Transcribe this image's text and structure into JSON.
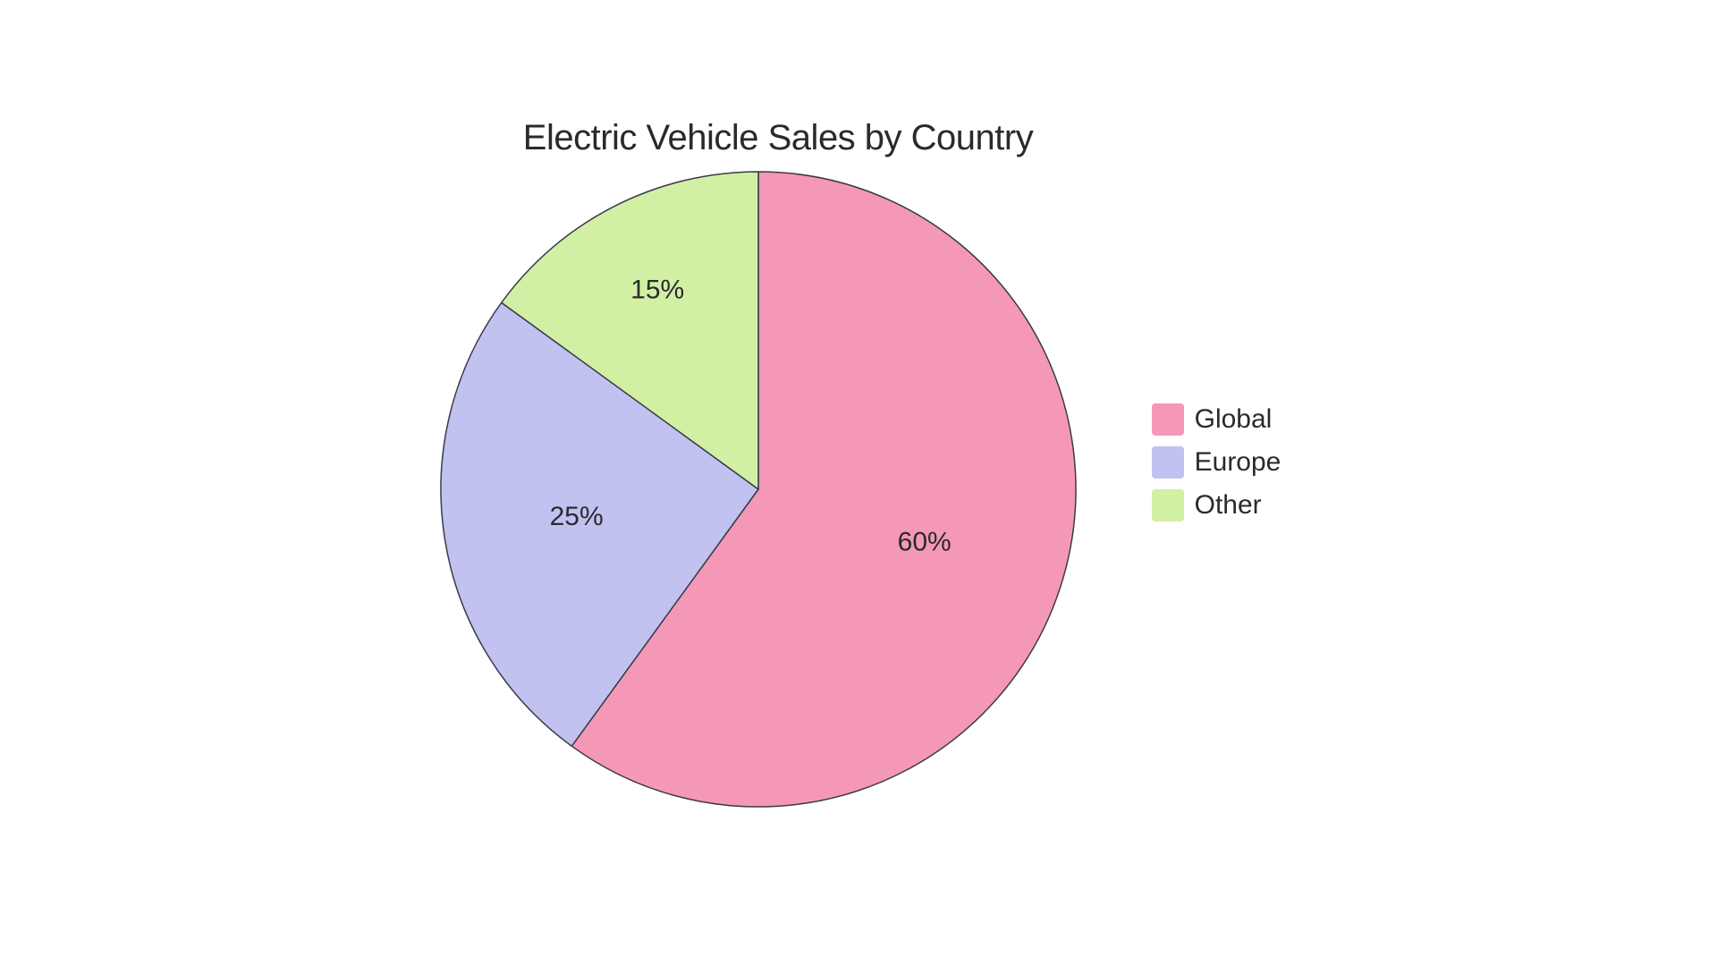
{
  "chart": {
    "type": "pie",
    "title": "Electric Vehicle Sales by Country",
    "title_fontsize": 40,
    "title_color": "#2a2a2e",
    "background_color": "#ffffff",
    "radius": 355,
    "stroke_color": "#3a3a4a",
    "stroke_width": 1.5,
    "label_fontsize": 30,
    "label_color": "#2a2a2e",
    "slices": [
      {
        "name": "Global",
        "value": 60,
        "label": "60%",
        "color": "#f598b7",
        "start_angle": 0,
        "end_angle": 216
      },
      {
        "name": "Europe",
        "value": 25,
        "label": "25%",
        "color": "#c1c2f0",
        "start_angle": 216,
        "end_angle": 306
      },
      {
        "name": "Other",
        "value": 15,
        "label": "15%",
        "color": "#d1f0a3",
        "start_angle": 306,
        "end_angle": 360
      }
    ],
    "legend": {
      "position": "right",
      "fontsize": 30,
      "swatch_size": 36,
      "swatch_radius": 4,
      "items": [
        {
          "label": "Global",
          "color": "#f598b7"
        },
        {
          "label": "Europe",
          "color": "#c1c2f0"
        },
        {
          "label": "Other",
          "color": "#d1f0a3"
        }
      ]
    }
  }
}
